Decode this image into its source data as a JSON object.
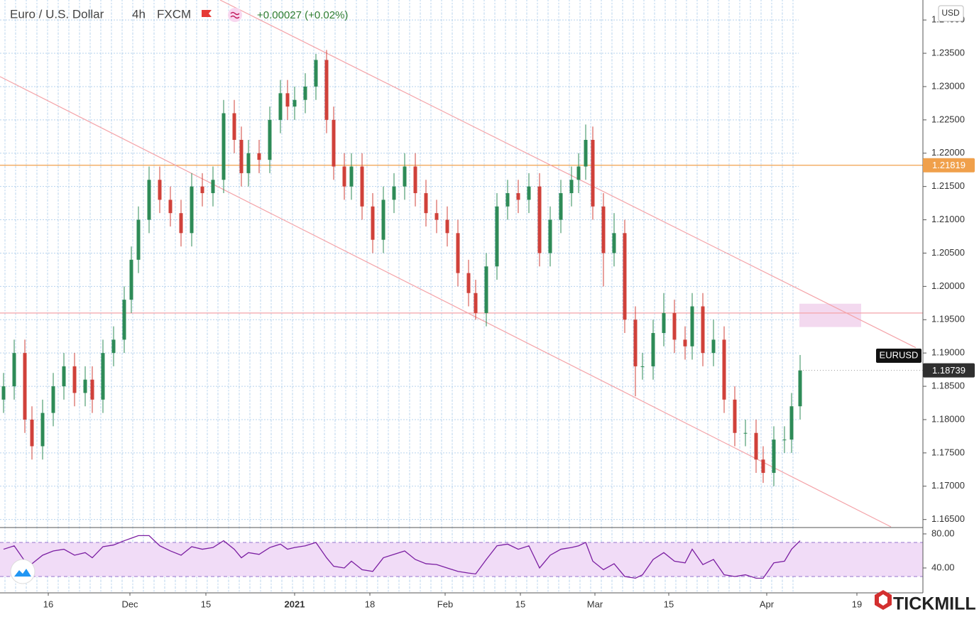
{
  "chart_data": {
    "type": "candlestick",
    "title": "Euro / U.S. Dollar",
    "interval": "4h",
    "source": "FXCM",
    "change": "+0.00027 (+0.02%)",
    "currency": "USD",
    "symbol": "EURUSD",
    "up_color": "#2e8b57",
    "down_color": "#d0413a",
    "grid": true,
    "x": [
      5,
      20,
      35,
      45,
      60,
      75,
      90,
      105,
      120,
      130,
      145,
      160,
      175,
      185,
      195,
      210,
      225,
      240,
      255,
      270,
      285,
      300,
      315,
      330,
      340,
      350,
      365,
      380,
      395,
      405,
      415,
      430,
      445,
      460,
      470,
      485,
      495,
      510,
      525,
      540,
      555,
      570,
      585,
      600,
      615,
      630,
      645,
      660,
      670,
      685,
      700,
      715,
      730,
      745,
      760,
      775,
      790,
      805,
      815,
      825,
      835,
      850,
      865,
      880,
      895,
      905,
      920,
      935,
      950,
      965,
      975,
      990,
      1005,
      1020,
      1035,
      1050,
      1065,
      1075,
      1090,
      1105,
      1115,
      1127
    ],
    "open": [
      1.183,
      1.185,
      1.19,
      1.18,
      1.176,
      1.181,
      1.185,
      1.188,
      1.184,
      1.186,
      1.183,
      1.19,
      1.192,
      1.198,
      1.204,
      1.21,
      1.216,
      1.213,
      1.211,
      1.208,
      1.215,
      1.214,
      1.216,
      1.226,
      1.222,
      1.217,
      1.22,
      1.219,
      1.225,
      1.229,
      1.227,
      1.228,
      1.23,
      1.234,
      1.225,
      1.218,
      1.215,
      1.218,
      1.212,
      1.207,
      1.213,
      1.215,
      1.218,
      1.214,
      1.211,
      1.21,
      1.208,
      1.202,
      1.199,
      1.196,
      1.203,
      1.212,
      1.214,
      1.213,
      1.215,
      1.205,
      1.21,
      1.214,
      1.216,
      1.218,
      1.222,
      1.212,
      1.205,
      1.208,
      1.195,
      1.188,
      1.188,
      1.193,
      1.196,
      1.192,
      1.191,
      1.197,
      1.19,
      1.192,
      1.183,
      1.178,
      1.178,
      1.174,
      1.172,
      1.177,
      1.177,
      1.182
    ],
    "high": [
      1.187,
      1.192,
      1.192,
      1.182,
      1.183,
      1.187,
      1.19,
      1.19,
      1.188,
      1.188,
      1.192,
      1.194,
      1.2,
      1.206,
      1.212,
      1.218,
      1.218,
      1.215,
      1.213,
      1.217,
      1.217,
      1.218,
      1.228,
      1.228,
      1.224,
      1.222,
      1.222,
      1.227,
      1.231,
      1.231,
      1.23,
      1.232,
      1.2349,
      1.2355,
      1.227,
      1.22,
      1.22,
      1.22,
      1.214,
      1.215,
      1.217,
      1.22,
      1.22,
      1.216,
      1.213,
      1.212,
      1.21,
      1.204,
      1.201,
      1.205,
      1.214,
      1.216,
      1.216,
      1.217,
      1.217,
      1.212,
      1.216,
      1.218,
      1.22,
      1.2243,
      1.224,
      1.214,
      1.211,
      1.21,
      1.197,
      1.19,
      1.195,
      1.199,
      1.198,
      1.194,
      1.199,
      1.199,
      1.195,
      1.194,
      1.185,
      1.18,
      1.18,
      1.176,
      1.179,
      1.179,
      1.184,
      1.1897
    ],
    "low": [
      1.181,
      1.183,
      1.178,
      1.174,
      1.174,
      1.179,
      1.183,
      1.182,
      1.182,
      1.181,
      1.181,
      1.188,
      1.19,
      1.196,
      1.202,
      1.208,
      1.211,
      1.209,
      1.206,
      1.206,
      1.212,
      1.212,
      1.214,
      1.22,
      1.215,
      1.215,
      1.217,
      1.217,
      1.223,
      1.225,
      1.225,
      1.226,
      1.228,
      1.223,
      1.216,
      1.213,
      1.213,
      1.21,
      1.205,
      1.205,
      1.211,
      1.213,
      1.212,
      1.209,
      1.208,
      1.206,
      1.2,
      1.197,
      1.195,
      1.194,
      1.201,
      1.21,
      1.211,
      1.211,
      1.203,
      1.203,
      1.208,
      1.212,
      1.214,
      1.216,
      1.21,
      1.2,
      1.203,
      1.193,
      1.1835,
      1.186,
      1.186,
      1.191,
      1.19,
      1.189,
      1.189,
      1.188,
      1.188,
      1.181,
      1.176,
      1.176,
      1.172,
      1.1705,
      1.17,
      1.175,
      1.175,
      1.18
    ],
    "close": [
      1.185,
      1.19,
      1.18,
      1.176,
      1.181,
      1.185,
      1.188,
      1.184,
      1.186,
      1.183,
      1.19,
      1.192,
      1.198,
      1.204,
      1.21,
      1.216,
      1.213,
      1.211,
      1.208,
      1.215,
      1.214,
      1.216,
      1.226,
      1.222,
      1.217,
      1.22,
      1.219,
      1.225,
      1.229,
      1.227,
      1.228,
      1.23,
      1.234,
      1.225,
      1.218,
      1.215,
      1.218,
      1.212,
      1.207,
      1.213,
      1.215,
      1.218,
      1.214,
      1.211,
      1.21,
      1.208,
      1.202,
      1.199,
      1.196,
      1.203,
      1.212,
      1.214,
      1.213,
      1.215,
      1.205,
      1.21,
      1.214,
      1.216,
      1.218,
      1.222,
      1.212,
      1.205,
      1.208,
      1.195,
      1.188,
      1.188,
      1.193,
      1.196,
      1.192,
      1.191,
      1.197,
      1.19,
      1.192,
      1.183,
      1.178,
      1.178,
      1.174,
      1.172,
      1.177,
      1.177,
      1.182,
      1.18739
    ],
    "xlim": [
      0,
      1300
    ],
    "xticks": [
      {
        "value": 68,
        "label": "16"
      },
      {
        "value": 183,
        "label": "Dec"
      },
      {
        "value": 290,
        "label": "15"
      },
      {
        "value": 415,
        "label": "2021"
      },
      {
        "value": 521,
        "label": "18"
      },
      {
        "value": 627,
        "label": "Feb"
      },
      {
        "value": 733,
        "label": "15"
      },
      {
        "value": 838,
        "label": "Mar"
      },
      {
        "value": 942,
        "label": "15"
      },
      {
        "value": 1080,
        "label": "Apr"
      },
      {
        "value": 1207,
        "label": "19"
      }
    ],
    "ylim": [
      1.1639,
      1.243
    ],
    "yticks": [
      {
        "value": 1.165,
        "label": "1.16500"
      },
      {
        "value": 1.17,
        "label": "1.17000"
      },
      {
        "value": 1.175,
        "label": "1.17500"
      },
      {
        "value": 1.18,
        "label": "1.18000"
      },
      {
        "value": 1.185,
        "label": "1.18500"
      },
      {
        "value": 1.19,
        "label": "1.19000"
      },
      {
        "value": 1.195,
        "label": "1.19500"
      },
      {
        "value": 1.2,
        "label": "1.20000"
      },
      {
        "value": 1.205,
        "label": "1.20500"
      },
      {
        "value": 1.21,
        "label": "1.21000"
      },
      {
        "value": 1.215,
        "label": "1.21500"
      },
      {
        "value": 1.22,
        "label": "1.22000"
      },
      {
        "value": 1.225,
        "label": "1.22500"
      },
      {
        "value": 1.23,
        "label": "1.23000"
      },
      {
        "value": 1.235,
        "label": "1.23500"
      },
      {
        "value": 1.24,
        "label": "1.24000"
      }
    ],
    "horizontal_lines": [
      {
        "value": 1.21819,
        "color": "#f0a04b",
        "label_shown": true
      },
      {
        "value": 1.196,
        "color": "#f4a3a8",
        "label_shown": false
      }
    ],
    "trendlines": [
      {
        "x": [
          310,
          1290
        ],
        "y": [
          1.243,
          1.1908
        ],
        "color": "#f4a3a8"
      },
      {
        "x": [
          0,
          1255
        ],
        "y": [
          1.2315,
          1.1639
        ],
        "color": "#f4a3a8"
      }
    ],
    "zone": {
      "x": [
        1126,
        1213
      ],
      "y": [
        1.1939,
        1.1974
      ],
      "color": "#f3d9ef"
    },
    "indicator": {
      "type": "line",
      "color": "#7b1fa2",
      "band": [
        30,
        70
      ],
      "band_color": "#f1dcf7",
      "values": [
        62,
        66,
        48,
        45,
        55,
        60,
        62,
        55,
        58,
        52,
        65,
        67,
        72,
        75,
        78,
        78,
        66,
        60,
        55,
        65,
        62,
        64,
        72,
        62,
        52,
        58,
        56,
        64,
        68,
        62,
        64,
        66,
        70,
        52,
        42,
        40,
        48,
        38,
        36,
        52,
        56,
        60,
        50,
        45,
        44,
        40,
        36,
        34,
        33,
        50,
        66,
        68,
        62,
        66,
        40,
        55,
        62,
        64,
        66,
        70,
        48,
        38,
        45,
        30,
        28,
        32,
        50,
        58,
        48,
        46,
        62,
        44,
        50,
        32,
        30,
        32,
        28,
        28,
        46,
        48,
        62,
        72
      ],
      "ylim": [
        10.8,
        85.8
      ],
      "yticks": [
        {
          "value": 40,
          "label": "40.00"
        },
        {
          "value": 80,
          "label": "80.00"
        }
      ]
    },
    "brand": "TICKMILL"
  }
}
